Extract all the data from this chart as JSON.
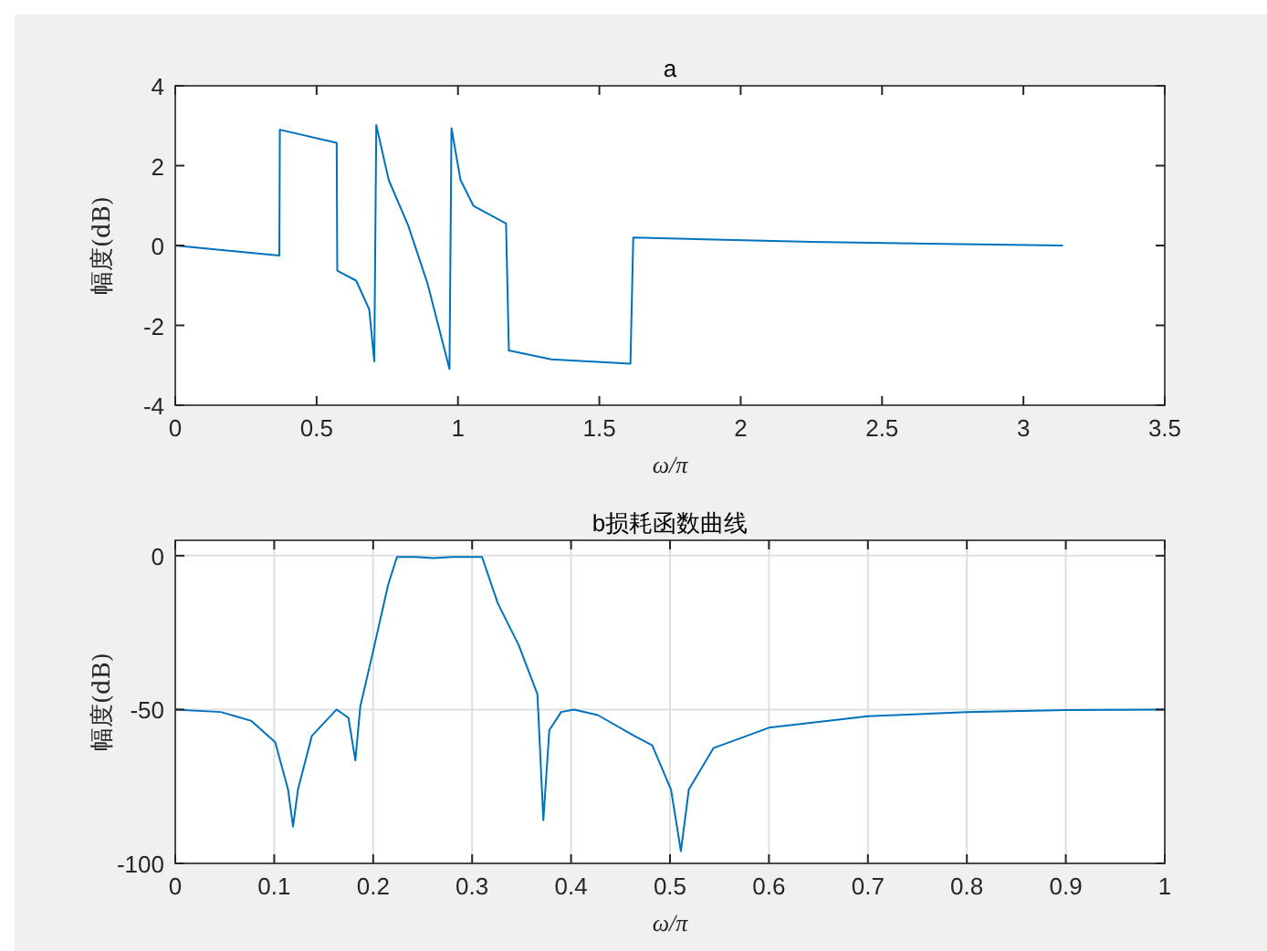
{
  "chart_data": [
    {
      "type": "line",
      "title": "a",
      "xlabel": "ω/π",
      "ylabel": "幅度(dB)",
      "xlim": [
        0,
        3.5
      ],
      "xticks": [
        0,
        0.5,
        1,
        1.5,
        2,
        2.5,
        3,
        3.5
      ],
      "ylim": [
        -4,
        4
      ],
      "yticks": [
        -4,
        -2,
        0,
        2,
        4
      ],
      "grid": false,
      "series": [
        {
          "color": "#0072bd",
          "x": [
            0,
            0.368,
            0.37,
            0.571,
            0.573,
            0.64,
            0.686,
            0.704,
            0.711,
            0.755,
            0.824,
            0.893,
            0.97,
            0.977,
            1.009,
            1.055,
            1.17,
            1.18,
            1.33,
            1.61,
            1.62,
            2.25,
            3.14
          ],
          "values": [
            0,
            -0.25,
            2.9,
            2.57,
            -0.63,
            -0.88,
            -1.6,
            -2.9,
            3.02,
            1.64,
            0.5,
            -0.97,
            -3.09,
            2.94,
            1.64,
            0.99,
            0.55,
            -2.63,
            -2.85,
            -2.96,
            0.2,
            0.09,
            0
          ]
        }
      ]
    },
    {
      "type": "line",
      "title": "b损耗函数曲线",
      "xlabel": "ω/π",
      "ylabel": "幅度(dB)",
      "xlim": [
        0,
        1
      ],
      "xticks": [
        0,
        0.1,
        0.2,
        0.3,
        0.4,
        0.5,
        0.6,
        0.7,
        0.8,
        0.9,
        1
      ],
      "ylim": [
        -100,
        5
      ],
      "yticks": [
        -100,
        -50,
        0
      ],
      "grid": true,
      "series": [
        {
          "color": "#0072bd",
          "x": [
            0,
            0.046,
            0.077,
            0.101,
            0.114,
            0.119,
            0.124,
            0.138,
            0.163,
            0.175,
            0.182,
            0.187,
            0.2,
            0.215,
            0.224,
            0.243,
            0.261,
            0.28,
            0.298,
            0.31,
            0.326,
            0.347,
            0.366,
            0.372,
            0.378,
            0.39,
            0.403,
            0.427,
            0.464,
            0.482,
            0.501,
            0.511,
            0.519,
            0.544,
            0.6,
            0.7,
            0.8,
            0.9,
            1
          ],
          "values": [
            -50,
            -50.8,
            -53.7,
            -60.6,
            -76,
            -88,
            -76,
            -58.6,
            -50,
            -52.7,
            -66.5,
            -49,
            -31,
            -9.6,
            -0.4,
            -0.4,
            -0.8,
            -0.4,
            -0.4,
            -0.4,
            -15.5,
            -29,
            -45,
            -86,
            -56.7,
            -50.8,
            -50,
            -51.8,
            -58.6,
            -61.6,
            -76,
            -96,
            -76,
            -62.5,
            -55.9,
            -52.2,
            -50.8,
            -50.2,
            -50
          ]
        }
      ]
    }
  ]
}
